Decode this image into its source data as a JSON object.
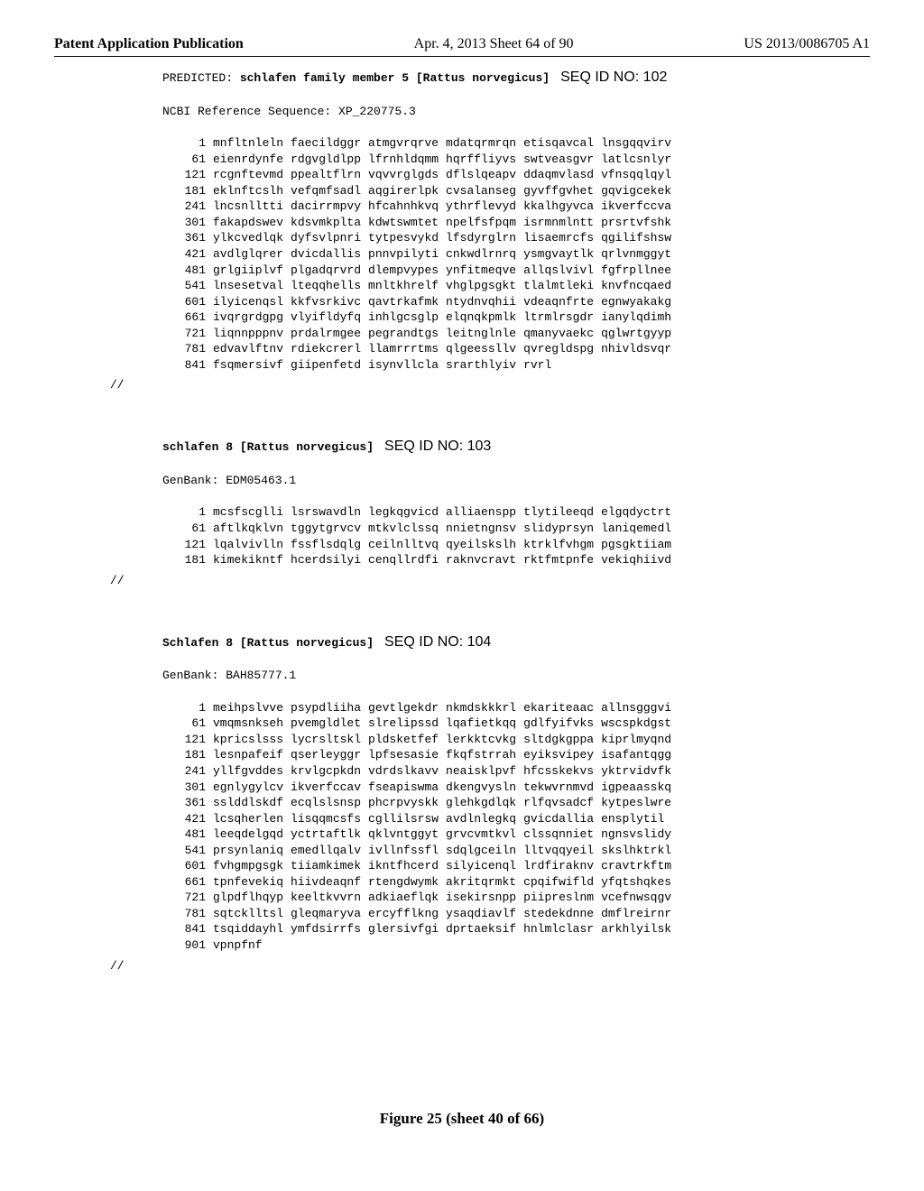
{
  "header": {
    "left": "Patent Application Publication",
    "mid": "Apr. 4, 2013   Sheet 64 of 90",
    "right": "US 2013/0086705 A1"
  },
  "figure_caption": "Figure 25 (sheet 40 of 66)",
  "terminator": "//",
  "blocks": [
    {
      "title_prefix": "PREDICTED: ",
      "title_name": "schlafen family member 5 [Rattus norvegicus]",
      "seqid": "SEQ ID NO: 102",
      "ref": "NCBI Reference Sequence: XP_220775.3",
      "rows": [
        {
          "n": "1",
          "s": [
            "mnfltnleln",
            "faecildggr",
            "atmgvrqrve",
            "mdatqrmrqn",
            "etisqavcal",
            "lnsgqqvirv"
          ]
        },
        {
          "n": "61",
          "s": [
            "eienrdynfe",
            "rdgvgldlpp",
            "lfrnhldqmm",
            "hqrffliyvs",
            "swtveasgvr",
            "latlcsnlyr"
          ]
        },
        {
          "n": "121",
          "s": [
            "rcgnftevmd",
            "ppealtflrn",
            "vqvvrglgds",
            "dflslqeapv",
            "ddaqmvlasd",
            "vfnsqqlqyl"
          ]
        },
        {
          "n": "181",
          "s": [
            "eklnftcslh",
            "vefqmfsadl",
            "aqgirerlpk",
            "cvsalanseg",
            "gyvffgvhet",
            "gqvigcekek"
          ]
        },
        {
          "n": "241",
          "s": [
            "lncsnlltti",
            "dacirrmpvy",
            "hfcahnhkvq",
            "ythrflevyd",
            "kkalhgyvca",
            "ikverfccva"
          ]
        },
        {
          "n": "301",
          "s": [
            "fakapdswev",
            "kdsvmkplta",
            "kdwtswmtet",
            "npelfsfpqm",
            "isrmnmlntt",
            "prsrtvfshk"
          ]
        },
        {
          "n": "361",
          "s": [
            "ylkcvedlqk",
            "dyfsvlpnri",
            "tytpesvykd",
            "lfsdyrglrn",
            "lisaemrcfs",
            "qgilifshsw"
          ]
        },
        {
          "n": "421",
          "s": [
            "avdlglqrer",
            "dvicdallis",
            "pnnvpilyti",
            "cnkwdlrnrq",
            "ysmgvaytlk",
            "qrlvnmggyt"
          ]
        },
        {
          "n": "481",
          "s": [
            "grlgiiplvf",
            "plgadqrvrd",
            "dlempvypes",
            "ynfitmeqve",
            "allqslvivl",
            "fgfrpllnee"
          ]
        },
        {
          "n": "541",
          "s": [
            "lnsesetval",
            "lteqqhells",
            "mnltkhrelf",
            "vhglpgsgkt",
            "tlalmtleki",
            "knvfncqaed"
          ]
        },
        {
          "n": "601",
          "s": [
            "ilyicenqsl",
            "kkfvsrkivc",
            "qavtrkafmk",
            "ntydnvqhii",
            "vdeaqnfrte",
            "egnwyakakg"
          ]
        },
        {
          "n": "661",
          "s": [
            "ivqrgrdgpg",
            "vlyifldyfq",
            "inhlgcsglp",
            "elqnqkpmlk",
            "ltrmlrsgdr",
            "ianylqdimh"
          ]
        },
        {
          "n": "721",
          "s": [
            "liqnnpppnv",
            "prdalrmgee",
            "pegrandtgs",
            "leitnglnle",
            "qmanyvaekc",
            "qglwrtgyyp"
          ]
        },
        {
          "n": "781",
          "s": [
            "edvavlftnv",
            "rdiekcrerl",
            "llamrrrtms",
            "qlgeessllv",
            "qvregldspg",
            "nhivldsvqr"
          ]
        },
        {
          "n": "841",
          "s": [
            "fsqmersivf",
            "giipenfetd",
            "isynvllcla",
            "srarthlyiv",
            "rvrl",
            ""
          ]
        }
      ]
    },
    {
      "title_prefix": "",
      "title_name": "schlafen 8 [Rattus norvegicus]",
      "seqid": "SEQ ID NO: 103",
      "ref": "GenBank: EDM05463.1",
      "rows": [
        {
          "n": "1",
          "s": [
            "mcsfscglli",
            "lsrswavdln",
            "legkqgvicd",
            "alliaenspp",
            "tlytileeqd",
            "elgqdyctrt"
          ]
        },
        {
          "n": "61",
          "s": [
            "aftlkqklvn",
            "tggytgrvcv",
            "mtkvlclssq",
            "nnietngnsv",
            "slidyprsyn",
            "laniqemedl"
          ]
        },
        {
          "n": "121",
          "s": [
            "lqalvivlln",
            "fssflsdqlg",
            "ceilnlltvq",
            "qyeilskslh",
            "ktrklfvhgm",
            "pgsgktiiam"
          ]
        },
        {
          "n": "181",
          "s": [
            "kimekikntf",
            "hcerdsilyi",
            "cenqllrdfi",
            "raknvcravt",
            "rktfmtpnfe",
            "vekiqhiivd"
          ]
        }
      ]
    },
    {
      "title_prefix": "",
      "title_name": "Schlafen 8 [Rattus norvegicus]",
      "seqid": "SEQ ID NO: 104",
      "ref": "GenBank: BAH85777.1",
      "rows": [
        {
          "n": "1",
          "s": [
            "meihpslvve",
            "psypdliiha",
            "gevtlgekdr",
            "nkmdskkkrl",
            "ekariteaac",
            "allnsgggvi"
          ]
        },
        {
          "n": "61",
          "s": [
            "vmqmsnkseh",
            "pvemgldlet",
            "slrelipssd",
            "lqafietkqq",
            "gdlfyifvks",
            "wscspkdgst"
          ]
        },
        {
          "n": "121",
          "s": [
            "kpricslsss",
            "lycrsltskl",
            "pldsketfef",
            "lerkktcvkg",
            "sltdgkgppa",
            "kiprlmyqnd"
          ]
        },
        {
          "n": "181",
          "s": [
            "lesnpafeif",
            "qserleyggr",
            "lpfsesasie",
            "fkqfstrrah",
            "eyiksvipey",
            "isafantqgg"
          ]
        },
        {
          "n": "241",
          "s": [
            "yllfgvddes",
            "krvlgcpkdn",
            "vdrdslkavv",
            "neaisklpvf",
            "hfcsskekvs",
            "yktrvidvfk"
          ]
        },
        {
          "n": "301",
          "s": [
            "egnlygylcv",
            "ikverfccav",
            "fseapiswma",
            "dkengvysln",
            "tekwvrnmvd",
            "igpeaasskq"
          ]
        },
        {
          "n": "361",
          "s": [
            "sslddlskdf",
            "ecqlslsnsp",
            "phcrpvyskk",
            "glehkgdlqk",
            "rlfqvsadcf",
            "kytpeslwre"
          ]
        },
        {
          "n": "421",
          "s": [
            "lcsqherlen",
            "lisqqmcsfs",
            "cgllilsrsw",
            "avdlnlegkq",
            "gvicdallia",
            "ensplytil"
          ]
        },
        {
          "n": "481",
          "s": [
            "leeqdelgqd",
            "yctrtaftlk",
            "qklvntggyt",
            "grvcvmtkvl",
            "clssqnniet",
            "ngnsvslidy"
          ]
        },
        {
          "n": "541",
          "s": [
            "prsynlaniq",
            "emedllqalv",
            "ivllnfssfl",
            "sdqlgceiln",
            "lltvqqyeil",
            "skslhktrkl"
          ]
        },
        {
          "n": "601",
          "s": [
            "fvhgmpgsgk",
            "tiiamkimek",
            "ikntfhcerd",
            "silyicenql",
            "lrdfiraknv",
            "cravtrkftm"
          ]
        },
        {
          "n": "661",
          "s": [
            "tpnfevekiq",
            "hiivdeaqnf",
            "rtengdwymk",
            "akritqrmkt",
            "cpqifwifld",
            "yfqtshqkes"
          ]
        },
        {
          "n": "721",
          "s": [
            "glpdflhqyp",
            "keeltkvvrn",
            "adkiaeflqk",
            "isekirsnpp",
            "piipreslnm",
            "vcefnwsqgv"
          ]
        },
        {
          "n": "781",
          "s": [
            "sqtcklltsl",
            "gleqmaryva",
            "ercyfflkng",
            "ysaqdiavlf",
            "stedekdnne",
            "dmflreirnr"
          ]
        },
        {
          "n": "841",
          "s": [
            "tsqiddayhl",
            "ymfdsirrfs",
            "glersivfgi",
            "dprtaeksif",
            "hnlmlclasr",
            "arkhlyilsk"
          ]
        },
        {
          "n": "901",
          "s": [
            "vpnpfnf",
            "",
            "",
            "",
            "",
            ""
          ]
        }
      ]
    }
  ]
}
